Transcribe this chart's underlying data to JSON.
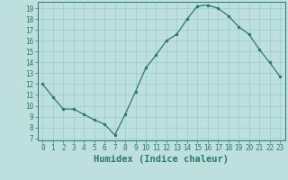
{
  "x": [
    0,
    1,
    2,
    3,
    4,
    5,
    6,
    7,
    8,
    9,
    10,
    11,
    12,
    13,
    14,
    15,
    16,
    17,
    18,
    19,
    20,
    21,
    22,
    23
  ],
  "y": [
    12,
    10.8,
    9.7,
    9.7,
    9.2,
    8.7,
    8.3,
    7.3,
    9.2,
    11.3,
    13.5,
    14.7,
    16.0,
    16.6,
    18.0,
    19.2,
    19.3,
    19.0,
    18.3,
    17.3,
    16.6,
    15.2,
    14.0,
    12.7
  ],
  "line_color": "#2a7a6a",
  "marker": ".",
  "marker_size": 3,
  "bg_color": "#bde0de",
  "grid_color": "#9ecece",
  "tick_color": "#2a7a6a",
  "xlabel": "Humidex (Indice chaleur)",
  "xlim": [
    -0.5,
    23.5
  ],
  "ylim": [
    6.8,
    19.6
  ],
  "yticks": [
    7,
    8,
    9,
    10,
    11,
    12,
    13,
    14,
    15,
    16,
    17,
    18,
    19
  ],
  "xticks": [
    0,
    1,
    2,
    3,
    4,
    5,
    6,
    7,
    8,
    9,
    10,
    11,
    12,
    13,
    14,
    15,
    16,
    17,
    18,
    19,
    20,
    21,
    22,
    23
  ],
  "tick_fontsize": 5.5,
  "xlabel_fontsize": 7.5
}
